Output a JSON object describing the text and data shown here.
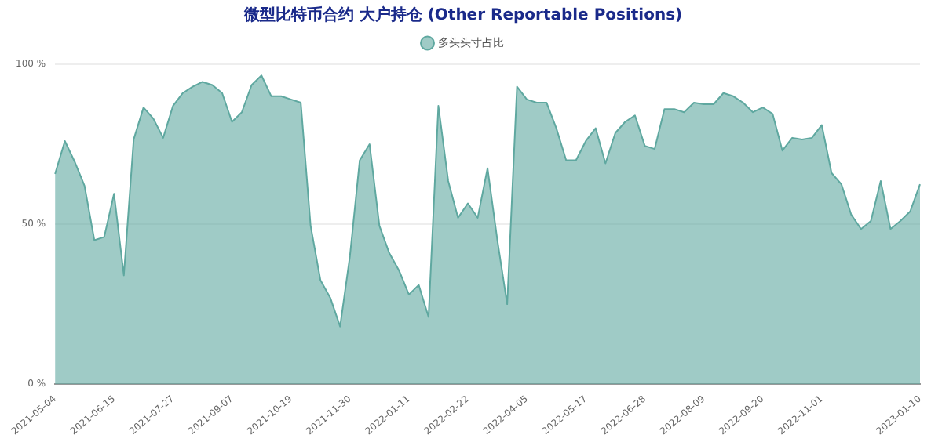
{
  "chart_data": {
    "type": "area",
    "title": "微型比特币合约 大户持仓 (Other Reportable Positions)",
    "categories": [
      "2021-05-04",
      null,
      null,
      null,
      null,
      null,
      "2021-06-15",
      null,
      null,
      null,
      null,
      null,
      "2021-07-27",
      null,
      null,
      null,
      null,
      null,
      "2021-09-07",
      null,
      null,
      null,
      null,
      null,
      "2021-10-19",
      null,
      null,
      null,
      null,
      null,
      "2021-11-30",
      null,
      null,
      null,
      null,
      null,
      "2022-01-11",
      null,
      null,
      null,
      null,
      null,
      "2022-02-22",
      null,
      null,
      null,
      null,
      null,
      "2022-04-05",
      null,
      null,
      null,
      null,
      null,
      "2022-05-17",
      null,
      null,
      null,
      null,
      null,
      "2022-06-28",
      null,
      null,
      null,
      null,
      null,
      "2022-08-09",
      null,
      null,
      null,
      null,
      null,
      "2022-09-20",
      null,
      null,
      null,
      null,
      null,
      "2022-11-01",
      null,
      null,
      null,
      null,
      null,
      null,
      null,
      null,
      null,
      "2023-01-10"
    ],
    "series": [
      {
        "name": "多头头寸占比",
        "color": "#5fa8a0",
        "values": [
          65.7,
          76,
          69.5,
          62,
          45,
          46,
          59.5,
          34,
          76.5,
          86.5,
          83,
          77,
          87,
          91,
          93,
          94.5,
          93.5,
          91,
          82,
          85,
          93.5,
          96.5,
          90,
          90,
          89,
          88,
          49.5,
          32.5,
          27,
          18,
          40,
          70,
          75,
          49.5,
          41,
          35.5,
          28,
          31,
          21,
          87,
          63.5,
          52,
          56.5,
          52,
          67.5,
          45,
          25,
          93,
          89,
          88,
          88,
          80,
          70,
          70,
          76,
          80,
          69,
          78.5,
          82,
          84,
          74.5,
          73.5,
          86,
          86,
          85,
          88,
          87.5,
          87.5,
          91,
          90,
          88,
          85,
          86.5,
          84.5,
          73,
          77,
          76.5,
          77,
          81,
          66,
          62.5,
          53,
          48.5,
          51,
          63.5,
          48.5,
          51,
          54,
          62.5
        ]
      }
    ],
    "ylim": [
      0,
      100
    ],
    "yticks": [
      {
        "value": 0,
        "label": "0 %"
      },
      {
        "value": 50,
        "label": "50 %"
      },
      {
        "value": 100,
        "label": "100 %"
      }
    ],
    "grid": "y",
    "legend": "top"
  }
}
